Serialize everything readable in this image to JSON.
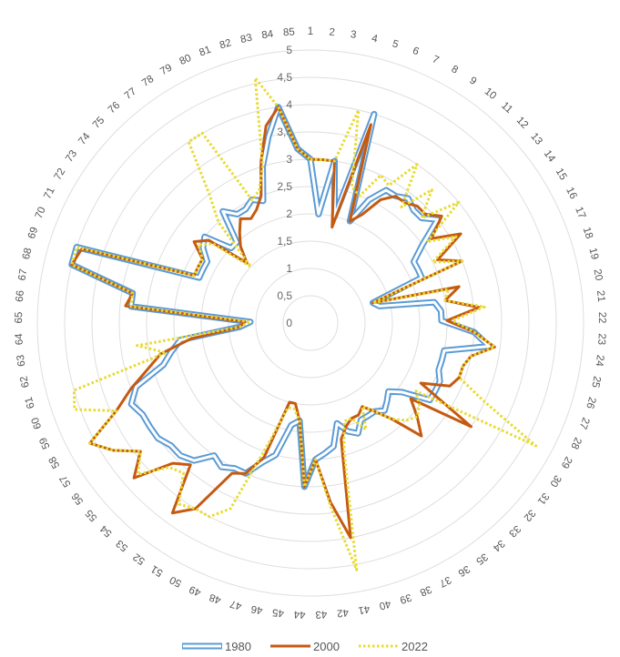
{
  "chart_data": {
    "type": "radar",
    "categories": [
      "1",
      "2",
      "3",
      "4",
      "5",
      "6",
      "7",
      "8",
      "9",
      "10",
      "11",
      "12",
      "13",
      "14",
      "15",
      "16",
      "17",
      "18",
      "19",
      "20",
      "21",
      "22",
      "23",
      "24",
      "25",
      "26",
      "27",
      "28",
      "29",
      "30",
      "31",
      "32",
      "33",
      "34",
      "35",
      "36",
      "37",
      "38",
      "39",
      "40",
      "41",
      "42",
      "43",
      "44",
      "45",
      "46",
      "47",
      "48",
      "49",
      "50",
      "51",
      "52",
      "53",
      "54",
      "55",
      "56",
      "57",
      "58",
      "59",
      "60",
      "61",
      "62",
      "63",
      "64",
      "65",
      "66",
      "67",
      "68",
      "69",
      "70",
      "71",
      "72",
      "73",
      "74",
      "75",
      "76",
      "77",
      "78",
      "79",
      "80",
      "81",
      "82",
      "83",
      "84",
      "85"
    ],
    "radial_ticks": [
      "0",
      "0,5",
      "1",
      "1,5",
      "2",
      "2,5",
      "3",
      "3,5",
      "4",
      "4,5",
      "5"
    ],
    "rlim": [
      0,
      5
    ],
    "grid": true,
    "legend_position": "bottom",
    "series": [
      {
        "name": "1980",
        "color": "#5B9BD5",
        "style": "double",
        "values": [
          3,
          2,
          3,
          2,
          4,
          2,
          2.5,
          2.8,
          2.8,
          2.9,
          2.8,
          2.8,
          3,
          2.5,
          2.2,
          2.2,
          2.2,
          1.2,
          1.3,
          2.3,
          2.4,
          2.4,
          3,
          3.3,
          2.5,
          2.5,
          2.5,
          2.6,
          2.6,
          2.6,
          2.1,
          1.9,
          2.0,
          2.1,
          2.0,
          2.0,
          2.0,
          2.2,
          2.1,
          1.9,
          2.3,
          2.4,
          2.5,
          3,
          1.8,
          1.9,
          2.5,
          2.7,
          3.0,
          3.0,
          3.1,
          3.0,
          3.3,
          3.4,
          3.4,
          3.5,
          3.5,
          3.5,
          3.6,
          3.4,
          2.8,
          2.6,
          2.4,
          1.3,
          1.1,
          3.3,
          3.3,
          4.5,
          4.5,
          2.2,
          2.2,
          2.2,
          2.4,
          2.5,
          2.0,
          2.0,
          2.6,
          2.4,
          2.4,
          2.5,
          2.4,
          3.0,
          3.5,
          4.0,
          3.2
        ]
      },
      {
        "name": "2000",
        "color": "#C55A11",
        "style": "solid",
        "values": [
          3,
          3,
          3,
          1.8,
          3.8,
          2,
          2.2,
          2.6,
          2.8,
          2.8,
          2.9,
          2.9,
          3.1,
          2.7,
          3.2,
          2.6,
          3.0,
          1.2,
          2.8,
          2.5,
          3.1,
          2.5,
          3.0,
          3.4,
          3.0,
          2.9,
          2.9,
          2.8,
          2.3,
          3.5,
          2.3,
          2.6,
          2.9,
          2.3,
          2.0,
          1.8,
          1.9,
          1.9,
          2.0,
          2.2,
          4.0,
          3.3,
          2.5,
          3.0,
          1.8,
          1.5,
          1.5,
          2.6,
          3.0,
          3.1,
          4.0,
          4.3,
          3.4,
          3.6,
          4.3,
          3.9,
          4.3,
          4.6,
          3.9,
          3.5,
          3.1,
          2.8,
          2.2,
          1.3,
          1.2,
          3.4,
          3.3,
          4.5,
          4.4,
          2.3,
          2.3,
          2.3,
          2.6,
          2.4,
          1.6,
          1.9,
          2.1,
          2.3,
          2.2,
          2.3,
          2.5,
          3.1,
          3.7,
          4.0,
          3.2
        ]
      },
      {
        "name": "2022",
        "color": "#E8DB2E",
        "style": "dotted",
        "values": [
          3,
          3,
          3,
          4,
          2.6,
          2.5,
          3.0,
          2.9,
          3.5,
          2.7,
          3.3,
          2.8,
          3.5,
          2.6,
          3.1,
          2.5,
          3.0,
          1.2,
          2.6,
          2.5,
          3.2,
          2.6,
          3.0,
          3.4,
          3.0,
          2.9,
          2.9,
          3.5,
          4.7,
          2.3,
          2.5,
          2.6,
          2.5,
          2.3,
          2.0,
          1.8,
          2.2,
          1.9,
          1.9,
          2.4,
          4.6,
          3.4,
          2.5,
          3.0,
          1.8,
          1.6,
          1.6,
          2.3,
          3.7,
          4.0,
          4.0,
          4.1,
          3.6,
          3.7,
          4.2,
          3.9,
          4.3,
          4.6,
          3.9,
          4.6,
          4.5,
          2.7,
          3.2,
          1.3,
          1.1,
          3.3,
          3.3,
          4.5,
          4.5,
          2.3,
          2.3,
          2.3,
          2.5,
          2.3,
          1.5,
          2.5,
          3.0,
          4.0,
          4.0,
          2.5,
          2.6,
          3.0,
          4.6,
          4.0,
          3.2
        ]
      }
    ]
  }
}
